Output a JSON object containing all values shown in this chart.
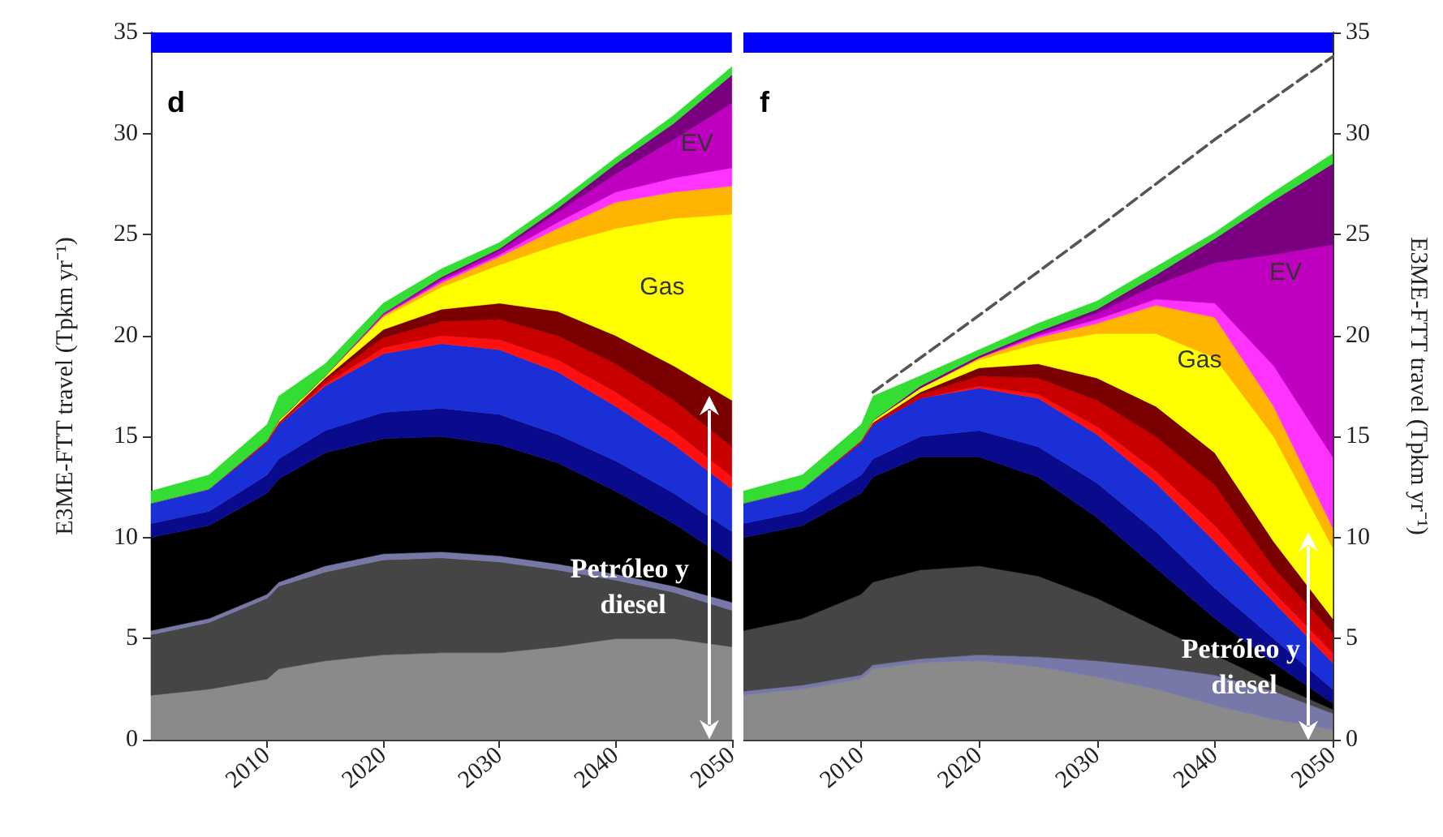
{
  "chart_data": [
    {
      "type": "area",
      "stacked": true,
      "ylabel": "E3ME-FTT travel (Tpkm yr⁻¹)",
      "xlim": [
        2000,
        2050
      ],
      "xticks": [
        2010,
        2020,
        2030,
        2040,
        2050
      ],
      "ylim": [
        0,
        35
      ],
      "yticks": [
        0,
        5,
        10,
        15,
        20,
        25,
        30,
        35
      ],
      "x": [
        2000,
        2005,
        2010,
        2011,
        2015,
        2020,
        2025,
        2030,
        2035,
        2040,
        2045,
        2050
      ],
      "series": [
        {
          "color": "#8a8a8a",
          "values": [
            2.2,
            2.5,
            3.0,
            3.5,
            3.9,
            4.2,
            4.3,
            4.3,
            4.6,
            5.0,
            5.0,
            4.6
          ]
        },
        {
          "color": "#454545",
          "values": [
            3.0,
            3.3,
            4.0,
            4.1,
            4.4,
            4.7,
            4.7,
            4.5,
            3.8,
            2.9,
            2.3,
            1.8
          ]
        },
        {
          "color": "#7878a8",
          "values": [
            0.2,
            0.2,
            0.2,
            0.2,
            0.3,
            0.3,
            0.3,
            0.3,
            0.3,
            0.3,
            0.3,
            0.4
          ]
        },
        {
          "color": "#000000",
          "values": [
            4.6,
            4.6,
            5.0,
            5.1,
            5.6,
            5.7,
            5.7,
            5.5,
            5.0,
            4.1,
            3.1,
            2.0
          ]
        },
        {
          "color": "#0a0a8c",
          "values": [
            0.7,
            0.7,
            0.9,
            1.0,
            1.1,
            1.3,
            1.4,
            1.5,
            1.4,
            1.5,
            1.5,
            1.5
          ]
        },
        {
          "color": "#1a2fd6",
          "values": [
            1.0,
            1.1,
            1.6,
            1.7,
            2.2,
            2.9,
            3.2,
            3.2,
            3.1,
            2.7,
            2.4,
            2.1
          ]
        },
        {
          "color": "#ff1010",
          "values": [
            0,
            0,
            0,
            0,
            0.1,
            0.3,
            0.4,
            0.5,
            0.6,
            0.7,
            0.7,
            0.6
          ]
        },
        {
          "color": "#c80000",
          "values": [
            0,
            0,
            0.1,
            0.1,
            0.2,
            0.5,
            0.7,
            1.0,
            1.2,
            1.4,
            1.5,
            1.5
          ]
        },
        {
          "color": "#7a0000",
          "values": [
            0,
            0,
            0,
            0,
            0.1,
            0.4,
            0.6,
            0.8,
            1.2,
            1.4,
            1.7,
            2.3
          ]
        },
        {
          "color": "#ffff00",
          "values": [
            0,
            0,
            0,
            0.1,
            0.1,
            0.6,
            1.1,
            1.9,
            3.3,
            5.3,
            7.3,
            9.2
          ]
        },
        {
          "color": "#ffb400",
          "values": [
            0,
            0,
            0,
            0,
            0,
            0.1,
            0.2,
            0.4,
            0.8,
            1.3,
            1.3,
            1.4
          ]
        },
        {
          "color": "#ff33ff",
          "values": [
            0,
            0,
            0,
            0,
            0,
            0,
            0.1,
            0.1,
            0.3,
            0.5,
            0.7,
            0.9
          ]
        },
        {
          "color": "#c000c0",
          "values": [
            0,
            0,
            0,
            0,
            0,
            0.1,
            0.1,
            0.2,
            0.5,
            0.9,
            1.9,
            3.2
          ]
        },
        {
          "color": "#7a0080",
          "values": [
            0,
            0,
            0,
            0,
            0,
            0,
            0.1,
            0.1,
            0.2,
            0.5,
            0.8,
            1.4
          ]
        },
        {
          "color": "#33dd33",
          "values": [
            0.6,
            0.7,
            0.8,
            1.2,
            0.6,
            0.5,
            0.4,
            0.3,
            0.3,
            0.3,
            0.4,
            0.4
          ]
        }
      ],
      "bands": [
        {
          "axis": "y",
          "from": 34,
          "to": 35,
          "color": "#0000ff"
        }
      ],
      "annotations": [
        "d",
        "EV",
        "Gas",
        "Petróleo y diesel"
      ]
    },
    {
      "type": "area",
      "stacked": true,
      "y2label": "E3ME-FTT travel (Tpkm yr⁻¹)",
      "xlim": [
        2000,
        2050
      ],
      "xticks": [
        2010,
        2020,
        2030,
        2040,
        2050
      ],
      "y2lim": [
        0,
        35
      ],
      "y2ticks": [
        0,
        5,
        10,
        15,
        20,
        25,
        30,
        35
      ],
      "x": [
        2000,
        2005,
        2010,
        2011,
        2015,
        2020,
        2025,
        2030,
        2035,
        2040,
        2045,
        2050
      ],
      "series": [
        {
          "axis": "y2",
          "color": "#8a8a8a",
          "values": [
            2.2,
            2.5,
            3.0,
            3.5,
            3.8,
            3.9,
            3.6,
            3.1,
            2.5,
            1.7,
            1.0,
            0.5
          ]
        },
        {
          "axis": "y2",
          "color": "#7878a8",
          "values": [
            0.2,
            0.2,
            0.2,
            0.2,
            0.2,
            0.3,
            0.5,
            0.8,
            1.1,
            1.5,
            1.4,
            0.8
          ]
        },
        {
          "axis": "y2",
          "color": "#454545",
          "values": [
            3.0,
            3.3,
            4.0,
            4.1,
            4.4,
            4.4,
            4.0,
            3.1,
            2.0,
            1.0,
            0.4,
            0.2
          ]
        },
        {
          "axis": "y2",
          "color": "#000000",
          "values": [
            4.6,
            4.6,
            5.0,
            5.2,
            5.6,
            5.4,
            4.9,
            4.0,
            2.9,
            1.8,
            1.0,
            0.3
          ]
        },
        {
          "axis": "y2",
          "color": "#0a0a8c",
          "values": [
            0.7,
            0.7,
            0.9,
            0.9,
            1.0,
            1.3,
            1.5,
            1.7,
            1.8,
            1.5,
            1.2,
            0.7
          ]
        },
        {
          "axis": "y2",
          "color": "#1a2fd6",
          "values": [
            1.0,
            1.1,
            1.6,
            1.7,
            1.9,
            2.1,
            2.4,
            2.4,
            2.4,
            2.3,
            1.8,
            1.3
          ]
        },
        {
          "axis": "y2",
          "color": "#ff1010",
          "values": [
            0,
            0,
            0,
            0,
            0,
            0.1,
            0.2,
            0.4,
            0.6,
            0.8,
            0.5,
            0.5
          ]
        },
        {
          "axis": "y2",
          "color": "#c80000",
          "values": [
            0,
            0,
            0.1,
            0.1,
            0.2,
            0.5,
            0.8,
            1.3,
            1.7,
            2.0,
            1.2,
            1.0
          ]
        },
        {
          "axis": "y2",
          "color": "#7a0000",
          "values": [
            0,
            0,
            0,
            0,
            0.1,
            0.4,
            0.7,
            1.1,
            1.5,
            1.6,
            1.3,
            0.7
          ]
        },
        {
          "axis": "y2",
          "color": "#ffff00",
          "values": [
            0,
            0,
            0,
            0.1,
            0.2,
            0.4,
            1.0,
            2.2,
            3.6,
            4.7,
            5.2,
            3.5
          ]
        },
        {
          "axis": "y2",
          "color": "#ffb400",
          "values": [
            0,
            0,
            0,
            0,
            0,
            0.1,
            0.3,
            0.5,
            1.4,
            2.0,
            1.5,
            1.0
          ]
        },
        {
          "axis": "y2",
          "color": "#ff33ff",
          "values": [
            0,
            0,
            0,
            0,
            0,
            0,
            0.1,
            0.2,
            0.3,
            0.7,
            2.0,
            3.5
          ]
        },
        {
          "axis": "y2",
          "color": "#c000c0",
          "values": [
            0,
            0,
            0,
            0,
            0,
            0,
            0.1,
            0.3,
            0.7,
            2.0,
            5.5,
            10.5
          ]
        },
        {
          "axis": "y2",
          "color": "#7a0080",
          "values": [
            0,
            0,
            0,
            0,
            0.1,
            0.1,
            0.1,
            0.2,
            0.5,
            1.2,
            2.7,
            4.0
          ]
        },
        {
          "axis": "y2",
          "color": "#33dd33",
          "values": [
            0.6,
            0.7,
            0.8,
            1.2,
            0.5,
            0.3,
            0.4,
            0.4,
            0.4,
            0.3,
            0.4,
            0.5
          ]
        },
        {
          "axis": "y2",
          "type": "line",
          "color": "#555555",
          "line_style": "dashed",
          "x": [
            2011,
            2020,
            2030,
            2040,
            2050
          ],
          "values": [
            17.2,
            21.0,
            25.3,
            29.7,
            33.8
          ]
        }
      ],
      "bands": [
        {
          "axis": "y2",
          "from": 34,
          "to": 35,
          "color": "#0000ff"
        }
      ],
      "annotations": [
        "f",
        "EV",
        "Gas",
        "Petróleo y diesel"
      ]
    }
  ]
}
